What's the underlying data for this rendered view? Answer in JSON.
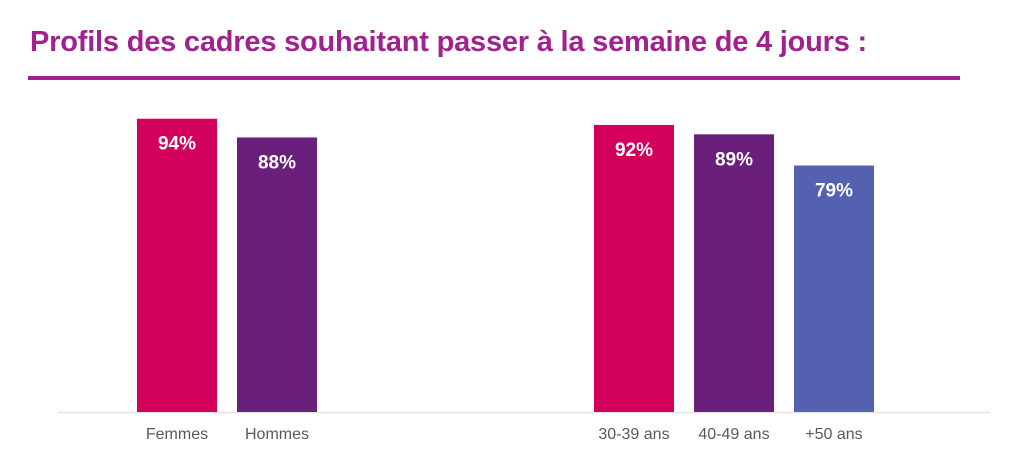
{
  "title": "Profils des cadres souhaitant passer à la semaine de 4 jours :",
  "colors": {
    "title": "#A0228E",
    "pink": "#D3005C",
    "purple": "#6B1F7C",
    "blue": "#5361B0",
    "baseline": "#E3E3E3",
    "category_text": "#595959",
    "value_text": "#FFFFFF"
  },
  "chart_data": [
    {
      "type": "bar",
      "categories": [
        "Femmes",
        "Hommes"
      ],
      "values": [
        94,
        88
      ],
      "value_labels": [
        "94%",
        "88%"
      ],
      "bar_colors": [
        "#D3005C",
        "#6B1F7C"
      ],
      "unit": "%",
      "ylim": [
        0,
        100
      ],
      "grid": false
    },
    {
      "type": "bar",
      "categories": [
        "30-39 ans",
        "40-49 ans",
        "+50 ans"
      ],
      "values": [
        92,
        89,
        79
      ],
      "value_labels": [
        "92%",
        "89%",
        "79%"
      ],
      "bar_colors": [
        "#D3005C",
        "#6B1F7C",
        "#5361B0"
      ],
      "unit": "%",
      "ylim": [
        0,
        100
      ],
      "grid": false
    }
  ]
}
